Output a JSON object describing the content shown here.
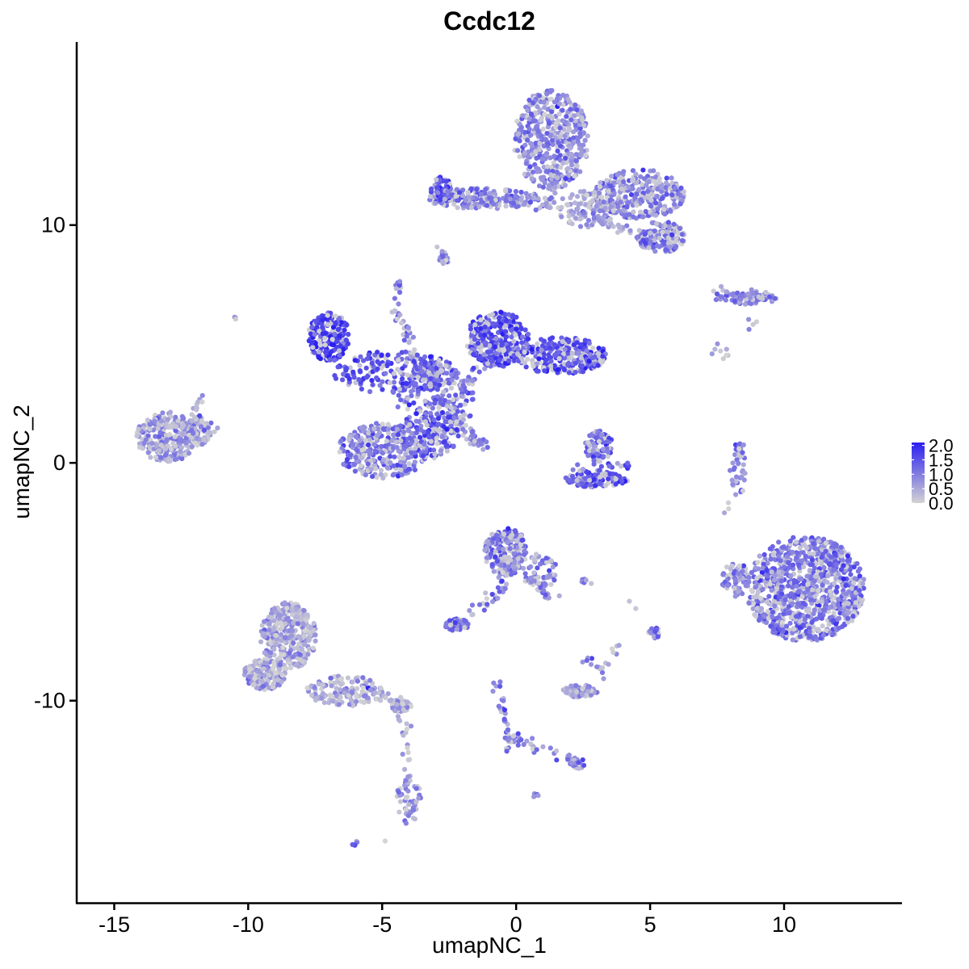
{
  "chart_data": {
    "type": "scatter",
    "title": "Ccdc12",
    "xlabel": "umapNC_1",
    "ylabel": "umapNC_2",
    "xlim": [
      -16.4,
      14.4
    ],
    "ylim": [
      -18.5,
      17.7
    ],
    "x_ticks": [
      -15,
      -10,
      -5,
      0,
      5,
      10
    ],
    "y_ticks": [
      -10,
      0,
      10
    ],
    "x_tick_labels": [
      "-15",
      "-10",
      "-5",
      "0",
      "5",
      "10"
    ],
    "y_tick_labels": [
      "-10",
      "0",
      "10"
    ],
    "grid": false,
    "colors": {
      "low": "#d3d3d3",
      "high": "#2b1ff0",
      "axis": "#000000",
      "background": "#ffffff"
    },
    "legend": {
      "placement": "right",
      "type": "colorbar",
      "range": [
        0,
        2.1
      ],
      "ticks": [
        2.0,
        1.5,
        1.0,
        0.5,
        0.0
      ],
      "tick_labels": [
        "2.0",
        "1.5",
        "1.0",
        "0.5",
        "0.0"
      ]
    },
    "clusters": [
      {
        "cx": 1.3,
        "cy": 13.6,
        "sx": 1.1,
        "sy": 1.6,
        "n": 420,
        "expr": 0.85
      },
      {
        "cx": 4.6,
        "cy": 11.3,
        "sx": 1.3,
        "sy": 0.8,
        "n": 300,
        "expr": 0.95
      },
      {
        "cx": 5.4,
        "cy": 9.5,
        "sx": 0.7,
        "sy": 0.5,
        "n": 140,
        "expr": 1.05
      },
      {
        "cx": -1.2,
        "cy": 11.1,
        "sx": 1.6,
        "sy": 0.35,
        "n": 160,
        "expr": 0.95
      },
      {
        "cx": -2.8,
        "cy": 11.5,
        "sx": 0.3,
        "sy": 0.4,
        "n": 60,
        "expr": 1.45
      },
      {
        "cx": 2.6,
        "cy": 10.7,
        "sx": 0.8,
        "sy": 0.6,
        "n": 90,
        "expr": 0.55
      },
      {
        "cx": -2.7,
        "cy": 8.6,
        "sx": 0.15,
        "sy": 0.2,
        "n": 18,
        "expr": 1.0
      },
      {
        "cx": -7.0,
        "cy": 5.3,
        "sx": 0.6,
        "sy": 0.8,
        "n": 200,
        "expr": 1.6
      },
      {
        "cx": -0.7,
        "cy": 5.2,
        "sx": 0.9,
        "sy": 0.9,
        "n": 300,
        "expr": 1.55
      },
      {
        "cx": 1.7,
        "cy": 4.5,
        "sx": 1.3,
        "sy": 0.6,
        "n": 260,
        "expr": 1.5
      },
      {
        "cx": -4.5,
        "cy": 3.8,
        "sx": 1.8,
        "sy": 0.7,
        "n": 200,
        "expr": 1.4
      },
      {
        "cx": -3.0,
        "cy": 2.6,
        "sx": 1.1,
        "sy": 1.2,
        "n": 160,
        "expr": 1.2
      },
      {
        "cx": -5.0,
        "cy": 0.5,
        "sx": 1.3,
        "sy": 0.9,
        "n": 300,
        "expr": 1.0
      },
      {
        "cx": -3.3,
        "cy": 1.2,
        "sx": 0.9,
        "sy": 0.8,
        "n": 150,
        "expr": 1.35
      },
      {
        "cx": -13.0,
        "cy": 1.1,
        "sx": 0.9,
        "sy": 0.8,
        "n": 260,
        "expr": 0.75
      },
      {
        "cx": -11.9,
        "cy": 1.4,
        "sx": 0.5,
        "sy": 0.5,
        "n": 60,
        "expr": 0.75
      },
      {
        "cx": 3.1,
        "cy": 0.7,
        "sx": 0.4,
        "sy": 0.5,
        "n": 70,
        "expr": 1.25
      },
      {
        "cx": 3.0,
        "cy": -0.7,
        "sx": 0.9,
        "sy": 0.25,
        "n": 120,
        "expr": 1.5
      },
      {
        "cx": 10.8,
        "cy": -5.3,
        "sx": 1.7,
        "sy": 1.7,
        "n": 900,
        "expr": 1.1
      },
      {
        "cx": 8.2,
        "cy": -4.9,
        "sx": 0.4,
        "sy": 0.6,
        "n": 70,
        "expr": 0.9
      },
      {
        "cx": 8.3,
        "cy": -0.3,
        "sx": 0.2,
        "sy": 0.9,
        "n": 25,
        "expr": 0.9
      },
      {
        "cx": 8.6,
        "cy": 6.9,
        "sx": 0.9,
        "sy": 0.2,
        "n": 70,
        "expr": 0.9
      },
      {
        "cx": 7.6,
        "cy": 4.7,
        "sx": 0.3,
        "sy": 0.3,
        "n": 8,
        "expr": 0.2
      },
      {
        "cx": -8.5,
        "cy": -7.3,
        "sx": 0.8,
        "sy": 1.1,
        "n": 350,
        "expr": 0.55
      },
      {
        "cx": -9.4,
        "cy": -8.9,
        "sx": 0.6,
        "sy": 0.5,
        "n": 150,
        "expr": 0.55
      },
      {
        "cx": -6.4,
        "cy": -9.6,
        "sx": 1.1,
        "sy": 0.5,
        "n": 140,
        "expr": 0.55
      },
      {
        "cx": -4.3,
        "cy": -10.2,
        "sx": 0.3,
        "sy": 0.2,
        "n": 40,
        "expr": 0.8
      },
      {
        "cx": -4.0,
        "cy": -14.2,
        "sx": 0.35,
        "sy": 0.8,
        "n": 50,
        "expr": 0.8
      },
      {
        "cx": -0.4,
        "cy": -3.7,
        "sx": 0.6,
        "sy": 0.8,
        "n": 200,
        "expr": 1.1
      },
      {
        "cx": 0.9,
        "cy": -4.6,
        "sx": 0.5,
        "sy": 0.6,
        "n": 60,
        "expr": 0.9
      },
      {
        "cx": -2.2,
        "cy": -6.8,
        "sx": 0.35,
        "sy": 0.2,
        "n": 70,
        "expr": 1.15
      },
      {
        "cx": 2.4,
        "cy": -9.6,
        "sx": 0.5,
        "sy": 0.2,
        "n": 70,
        "expr": 0.7
      },
      {
        "cx": 2.6,
        "cy": -5.0,
        "sx": 0.2,
        "sy": 0.1,
        "n": 8,
        "expr": 0.9
      },
      {
        "cx": 5.1,
        "cy": -7.2,
        "sx": 0.2,
        "sy": 0.25,
        "n": 18,
        "expr": 1.0
      },
      {
        "cx": 2.3,
        "cy": -12.6,
        "sx": 0.3,
        "sy": 0.2,
        "n": 20,
        "expr": 1.1
      },
      {
        "cx": 0.7,
        "cy": -14.0,
        "sx": 0.1,
        "sy": 0.1,
        "n": 5,
        "expr": 1.1
      },
      {
        "cx": -6.0,
        "cy": -16.0,
        "sx": 0.1,
        "sy": 0.1,
        "n": 6,
        "expr": 1.3
      },
      {
        "cx": -10.5,
        "cy": 6.1,
        "sx": 0.05,
        "sy": 0.05,
        "n": 3,
        "expr": 0.9
      },
      {
        "cx": -4.4,
        "cy": 7.4,
        "sx": 0.1,
        "sy": 0.2,
        "n": 12,
        "expr": 1.0
      }
    ],
    "streams": [
      {
        "from": [
          -4.6,
          6.8
        ],
        "to": [
          -3.3,
          3.2
        ],
        "n": 45,
        "expr": 1.1
      },
      {
        "from": [
          -3.6,
          4.5
        ],
        "to": [
          -1.6,
          0.7
        ],
        "n": 55,
        "expr": 1.0
      },
      {
        "from": [
          -2.2,
          2.0
        ],
        "to": [
          -1.2,
          0.6
        ],
        "n": 30,
        "expr": 1.0
      },
      {
        "from": [
          -2.4,
          2.6
        ],
        "to": [
          -0.7,
          5.0
        ],
        "n": 30,
        "expr": 1.1
      },
      {
        "from": [
          -2.8,
          11.4
        ],
        "to": [
          1.1,
          10.8
        ],
        "n": 55,
        "expr": 1.1
      },
      {
        "from": [
          1.1,
          10.8
        ],
        "to": [
          1.6,
          12.4
        ],
        "n": 30,
        "expr": 0.9
      },
      {
        "from": [
          2.4,
          10.6
        ],
        "to": [
          4.2,
          9.8
        ],
        "n": 35,
        "expr": 0.7
      },
      {
        "from": [
          -11.9,
          1.5
        ],
        "to": [
          -11.3,
          1.4
        ],
        "n": 10,
        "expr": 0.8
      },
      {
        "from": [
          -12.0,
          2.0
        ],
        "to": [
          -11.8,
          2.8
        ],
        "n": 10,
        "expr": 0.8
      },
      {
        "from": [
          -0.3,
          -5.0
        ],
        "to": [
          -1.9,
          -6.6
        ],
        "n": 25,
        "expr": 1.0
      },
      {
        "from": [
          0.7,
          -4.8
        ],
        "to": [
          1.3,
          -5.6
        ],
        "n": 12,
        "expr": 0.9
      },
      {
        "from": [
          -0.8,
          -9.2
        ],
        "to": [
          -0.2,
          -11.6
        ],
        "n": 25,
        "expr": 0.9
      },
      {
        "from": [
          -0.2,
          -11.6
        ],
        "to": [
          2.3,
          -12.6
        ],
        "n": 30,
        "expr": 0.9
      },
      {
        "from": [
          -0.2,
          -11.6
        ],
        "to": [
          -0.3,
          -12.3
        ],
        "n": 6,
        "expr": 0.9
      },
      {
        "from": [
          2.6,
          -8.3
        ],
        "to": [
          3.3,
          -8.8
        ],
        "n": 10,
        "expr": 0.7
      },
      {
        "from": [
          3.8,
          -7.5
        ],
        "to": [
          3.2,
          -9.3
        ],
        "n": 8,
        "expr": 0.4
      },
      {
        "from": [
          8.4,
          0.9
        ],
        "to": [
          8.2,
          -0.9
        ],
        "n": 16,
        "expr": 0.8
      },
      {
        "from": [
          7.8,
          -1.7
        ],
        "to": [
          7.7,
          -2.0
        ],
        "n": 3,
        "expr": 0.3
      },
      {
        "from": [
          7.3,
          7.2
        ],
        "to": [
          9.6,
          7.0
        ],
        "n": 30,
        "expr": 0.8
      },
      {
        "from": [
          8.9,
          6.0
        ],
        "to": [
          8.7,
          5.7
        ],
        "n": 4,
        "expr": 0.9
      },
      {
        "from": [
          -4.1,
          -11.0
        ],
        "to": [
          -4.1,
          -13.3
        ],
        "n": 14,
        "expr": 0.6
      },
      {
        "from": [
          -4.2,
          -10.2
        ],
        "to": [
          -4.4,
          -10.9
        ],
        "n": 5,
        "expr": 0.4
      },
      {
        "from": [
          -5.6,
          -9.6
        ],
        "to": [
          -4.2,
          -10.2
        ],
        "n": 20,
        "expr": 0.6
      },
      {
        "from": [
          3.0,
          1.5
        ],
        "to": [
          2.8,
          0.3
        ],
        "n": 18,
        "expr": 1.1
      },
      {
        "from": [
          2.1,
          -0.3
        ],
        "to": [
          4.3,
          -0.1
        ],
        "n": 20,
        "expr": 1.3
      },
      {
        "from": [
          -2.8,
          9.0
        ],
        "to": [
          -2.7,
          8.4
        ],
        "n": 6,
        "expr": 0.9
      },
      {
        "from": [
          4.0,
          -5.9
        ],
        "to": [
          4.6,
          -6.1
        ],
        "n": 2,
        "expr": 0.2
      },
      {
        "from": [
          -4.6,
          -15.7
        ],
        "to": [
          -4.7,
          -15.8
        ],
        "n": 1,
        "expr": 0.2
      }
    ]
  }
}
